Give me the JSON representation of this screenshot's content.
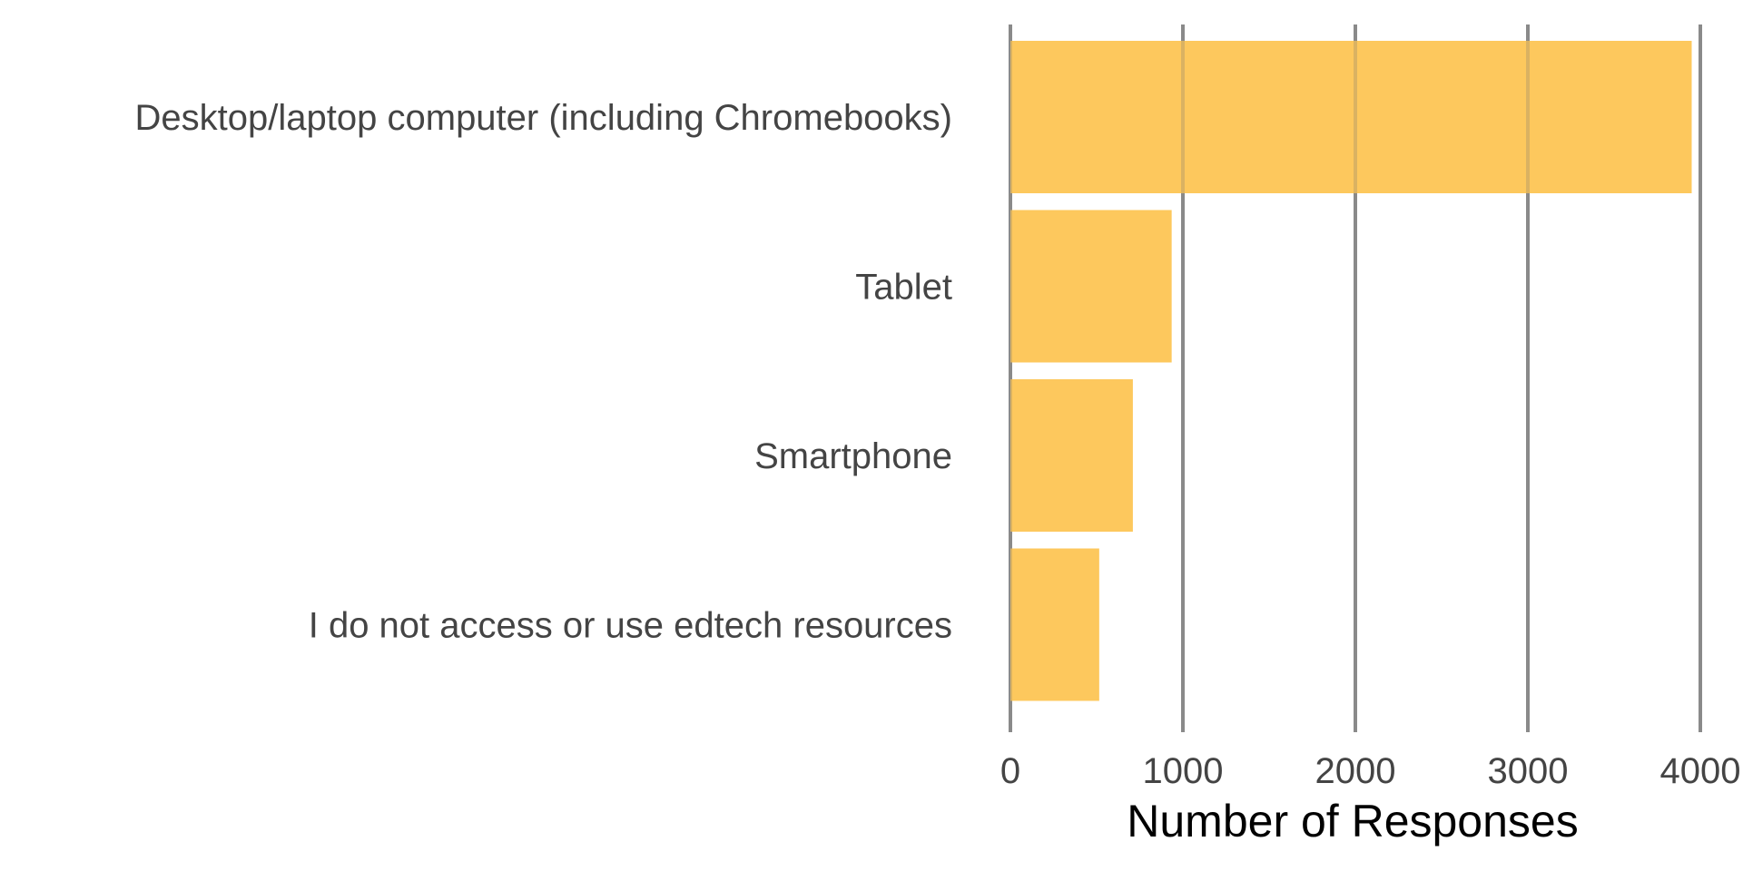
{
  "chart_data": {
    "type": "bar",
    "orientation": "horizontal",
    "categories": [
      "Desktop/laptop computer (including Chromebooks)",
      "Tablet",
      "Smartphone",
      "I do not access or use edtech resources"
    ],
    "values": [
      3950,
      935,
      710,
      515
    ],
    "xlabel": "Number of Responses",
    "ylabel": "",
    "xlim": [
      0,
      4000
    ],
    "xticks": [
      0,
      1000,
      2000,
      3000,
      4000
    ],
    "grid": "vertical major",
    "legend": "none",
    "bar_color": "#FDC34F"
  }
}
